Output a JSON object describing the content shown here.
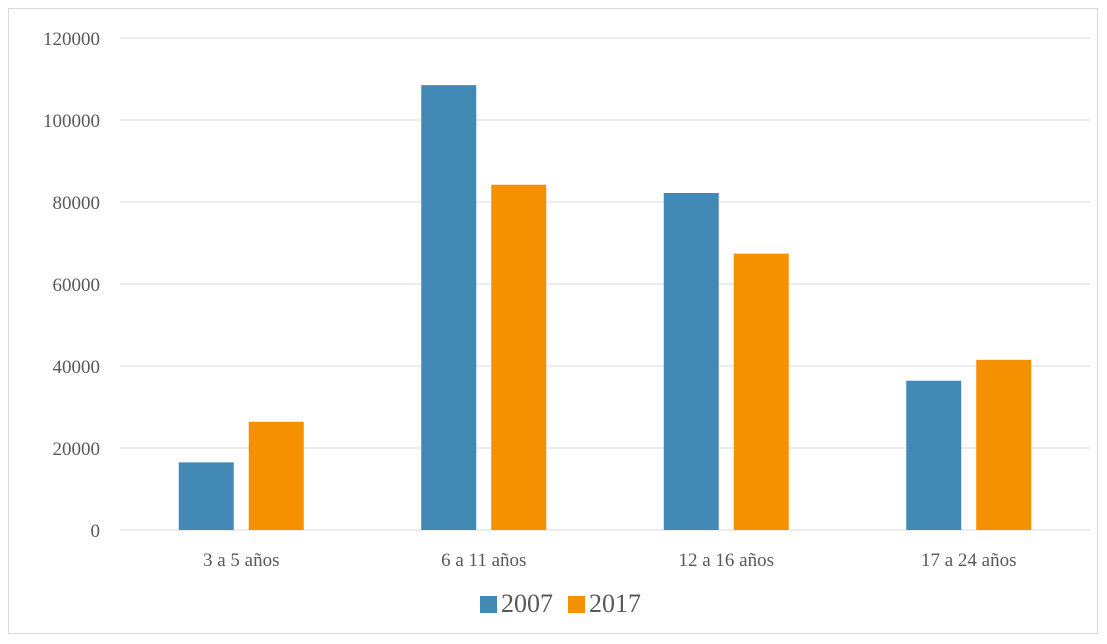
{
  "chart_data": {
    "type": "bar",
    "categories": [
      "3 a 5 años",
      "6 a 11 años",
      "12 a 16 años",
      "17 a 24 años"
    ],
    "series": [
      {
        "name": "2007",
        "color": "#4389b5",
        "values": [
          16500,
          108500,
          82200,
          36400
        ]
      },
      {
        "name": "2017",
        "color": "#f59000",
        "values": [
          26400,
          84200,
          67400,
          41500
        ]
      }
    ],
    "yticks": [
      "0",
      "20000",
      "40000",
      "60000",
      "80000",
      "100000",
      "120000"
    ],
    "ylim": [
      0,
      120000
    ],
    "grid": true,
    "legend": "bottom"
  }
}
